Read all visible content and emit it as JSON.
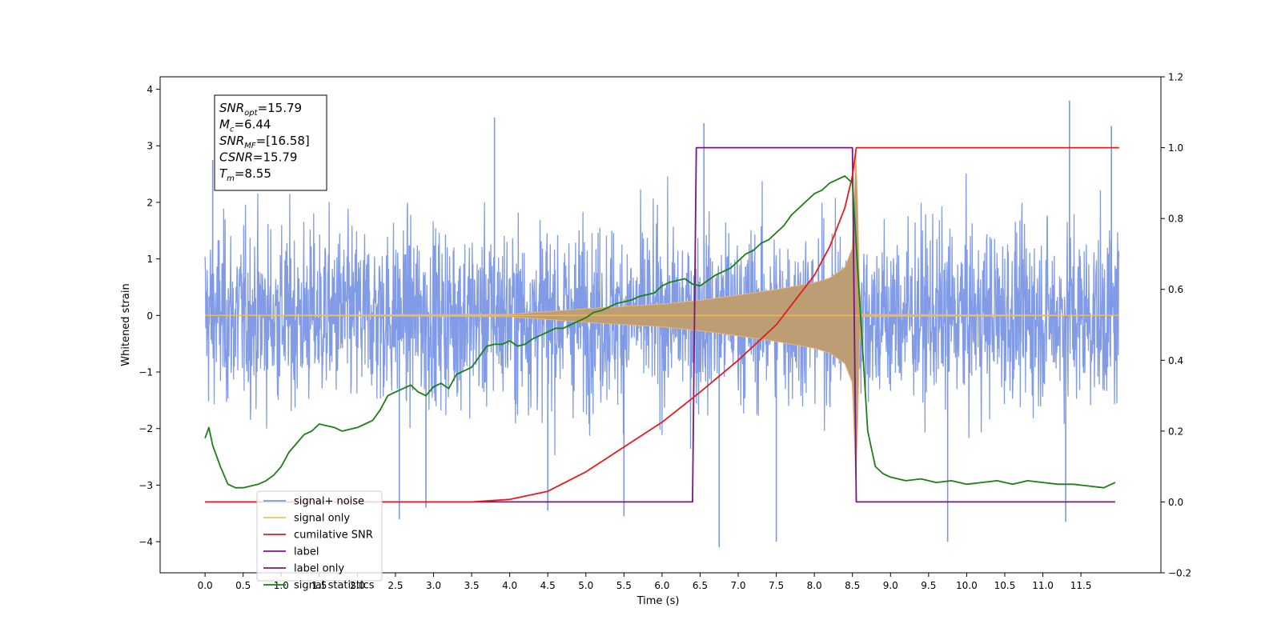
{
  "chart_data": {
    "type": "line",
    "xlabel": "Time (s)",
    "ylabel": "Whitened strain",
    "xlim": [
      -0.59,
      12.55
    ],
    "ylim": [
      -4.55,
      4.22
    ],
    "y2lim": [
      -0.2,
      1.2
    ],
    "x_ticks": [
      "0.0",
      "0.5",
      "1.0",
      "1.5",
      "2.0",
      "2.5",
      "3.0",
      "3.5",
      "4.0",
      "4.5",
      "5.0",
      "5.5",
      "6.0",
      "6.5",
      "7.0",
      "7.5",
      "8.0",
      "8.5",
      "9.0",
      "9.5",
      "10.0",
      "10.5",
      "11.0",
      "11.5"
    ],
    "y_ticks": [
      "4",
      "3",
      "2",
      "1",
      "0",
      "−1",
      "−2",
      "−3",
      "−4"
    ],
    "y2_ticks": [
      "1.2",
      "1.0",
      "0.8",
      "0.6",
      "0.4",
      "0.2",
      "0.0",
      "−0.2"
    ],
    "grid": false,
    "legend_position": "lower-left",
    "annotation": {
      "lines": [
        {
          "name": "SNR",
          "sub": "opt",
          "value": "=15.79"
        },
        {
          "name": "M",
          "sub": "c",
          "value": "=6.44"
        },
        {
          "name": "SNR",
          "sub": "MF",
          "value": "=[16.58]"
        },
        {
          "name": "CSNR",
          "sub": "",
          "value": "=15.79"
        },
        {
          "name": "T",
          "sub": "m",
          "value": "=8.55"
        }
      ]
    },
    "series": [
      {
        "name": "signal+ noise",
        "color": "#7a96e6",
        "axis": "left",
        "x_range": [
          0.0,
          12.0
        ],
        "noise_envelope_y": [
          -2.5,
          2.5
        ],
        "notable_peaks": [
          {
            "x": 3.8,
            "y": 3.5
          },
          {
            "x": 6.55,
            "y": 3.4
          },
          {
            "x": 11.35,
            "y": 3.8
          },
          {
            "x": 11.9,
            "y": 3.35
          },
          {
            "x": 0.1,
            "y": 2.75
          },
          {
            "x": 2.55,
            "y": -3.6
          },
          {
            "x": 2.9,
            "y": -3.4
          },
          {
            "x": 4.5,
            "y": -3.45
          },
          {
            "x": 5.5,
            "y": -3.55
          },
          {
            "x": 6.75,
            "y": -4.1
          },
          {
            "x": 7.5,
            "y": -4.0
          },
          {
            "x": 9.75,
            "y": -4.0
          },
          {
            "x": 11.3,
            "y": -3.65
          }
        ]
      },
      {
        "name": "signal only",
        "color": "#f5bf60",
        "axis": "left",
        "envelope_x": [
          0.0,
          4.0,
          5.0,
          6.0,
          6.5,
          7.0,
          7.5,
          8.0,
          8.2,
          8.4,
          8.5,
          8.55,
          8.6,
          12.0
        ],
        "envelope_y": [
          0.0,
          0.02,
          0.12,
          0.2,
          0.27,
          0.36,
          0.46,
          0.58,
          0.66,
          0.85,
          1.2,
          3.1,
          0.02,
          0.0
        ]
      },
      {
        "name": "cumilative SNR",
        "color": "#e8191a",
        "axis": "right",
        "x": [
          0.0,
          3.5,
          4.0,
          4.5,
          5.0,
          5.5,
          6.0,
          6.5,
          7.0,
          7.5,
          8.0,
          8.2,
          8.4,
          8.5,
          8.55,
          12.0
        ],
        "y": [
          0.0,
          0.0,
          0.007,
          0.03,
          0.085,
          0.155,
          0.225,
          0.31,
          0.4,
          0.5,
          0.64,
          0.72,
          0.83,
          0.92,
          1.0,
          1.0
        ]
      },
      {
        "name": "label",
        "color": "#7b1580",
        "axis": "right",
        "x": [
          0.0,
          6.4,
          6.45,
          8.5,
          8.55,
          11.95
        ],
        "y": [
          0.0,
          0.0,
          1.0,
          1.0,
          0.0,
          0.0
        ]
      },
      {
        "name": "label only",
        "color": "#7b1580",
        "axis": "right",
        "x": [],
        "y": []
      },
      {
        "name": "signal statistics",
        "color": "#1a8015",
        "axis": "right",
        "x": [
          0.0,
          0.05,
          0.1,
          0.2,
          0.3,
          0.4,
          0.5,
          0.6,
          0.7,
          0.8,
          0.9,
          1.0,
          1.1,
          1.2,
          1.3,
          1.4,
          1.5,
          1.6,
          1.7,
          1.8,
          1.9,
          2.0,
          2.1,
          2.2,
          2.3,
          2.4,
          2.5,
          2.6,
          2.7,
          2.8,
          2.9,
          3.0,
          3.1,
          3.2,
          3.3,
          3.4,
          3.5,
          3.6,
          3.7,
          3.8,
          3.9,
          4.0,
          4.1,
          4.2,
          4.3,
          4.4,
          4.5,
          4.6,
          4.7,
          4.8,
          4.9,
          5.0,
          5.1,
          5.2,
          5.3,
          5.4,
          5.5,
          5.6,
          5.7,
          5.8,
          5.9,
          6.0,
          6.1,
          6.2,
          6.3,
          6.4,
          6.5,
          6.6,
          6.7,
          6.8,
          6.9,
          7.0,
          7.1,
          7.2,
          7.3,
          7.4,
          7.5,
          7.6,
          7.7,
          7.8,
          7.9,
          8.0,
          8.1,
          8.2,
          8.3,
          8.4,
          8.5,
          8.6,
          8.7,
          8.8,
          8.9,
          9.0,
          9.2,
          9.4,
          9.6,
          9.8,
          10.0,
          10.2,
          10.4,
          10.6,
          10.8,
          11.0,
          11.2,
          11.4,
          11.6,
          11.8,
          11.95
        ],
        "y": [
          0.18,
          0.21,
          0.16,
          0.1,
          0.05,
          0.04,
          0.04,
          0.045,
          0.05,
          0.06,
          0.075,
          0.1,
          0.14,
          0.165,
          0.19,
          0.2,
          0.22,
          0.215,
          0.21,
          0.2,
          0.205,
          0.21,
          0.22,
          0.23,
          0.26,
          0.3,
          0.31,
          0.32,
          0.33,
          0.31,
          0.3,
          0.325,
          0.335,
          0.32,
          0.36,
          0.37,
          0.38,
          0.41,
          0.44,
          0.445,
          0.445,
          0.455,
          0.44,
          0.445,
          0.46,
          0.47,
          0.48,
          0.49,
          0.49,
          0.5,
          0.51,
          0.52,
          0.535,
          0.54,
          0.55,
          0.56,
          0.565,
          0.57,
          0.58,
          0.585,
          0.59,
          0.61,
          0.62,
          0.625,
          0.63,
          0.615,
          0.61,
          0.625,
          0.64,
          0.65,
          0.66,
          0.68,
          0.7,
          0.71,
          0.73,
          0.74,
          0.76,
          0.78,
          0.81,
          0.83,
          0.85,
          0.87,
          0.88,
          0.9,
          0.91,
          0.92,
          0.9,
          0.55,
          0.2,
          0.1,
          0.08,
          0.07,
          0.06,
          0.065,
          0.055,
          0.06,
          0.05,
          0.055,
          0.06,
          0.05,
          0.06,
          0.055,
          0.05,
          0.05,
          0.045,
          0.04,
          0.055
        ]
      }
    ]
  }
}
